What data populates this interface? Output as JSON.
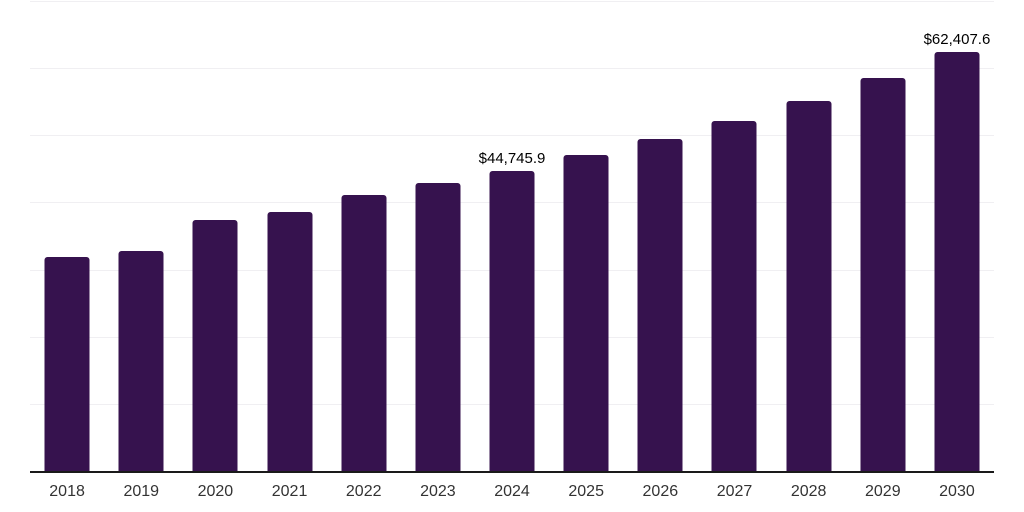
{
  "chart_data": {
    "type": "bar",
    "title": "",
    "xlabel": "",
    "ylabel": "",
    "categories": [
      "2018",
      "2019",
      "2020",
      "2021",
      "2022",
      "2023",
      "2024",
      "2025",
      "2026",
      "2027",
      "2028",
      "2029",
      "2030"
    ],
    "values": [
      31900,
      32800,
      37400,
      38600,
      41100,
      42900,
      44745.9,
      47000,
      49400,
      52200,
      55100,
      58500,
      62407.6
    ],
    "labeled_points": [
      {
        "category": "2024",
        "label": "$44,745.9"
      },
      {
        "category": "2030",
        "label": "$62,407.6"
      }
    ],
    "ylim": [
      0,
      70000
    ],
    "gridline_step": 10000,
    "grid": true,
    "legend": false,
    "y_axis_labels_visible": false,
    "colors": {
      "bar": "#36124e",
      "axis_line": "#1a1a1a",
      "gridline": "#f0eff2",
      "data_label": "#000000",
      "tick_label": "#333333",
      "background": "#ffffff"
    }
  }
}
